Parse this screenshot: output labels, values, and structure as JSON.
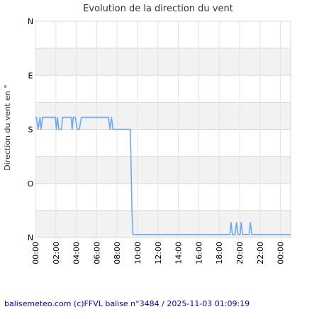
{
  "chart_data": {
    "type": "line",
    "title": "Evolution de la direction du vent",
    "ylabel": "Direction du vent en °",
    "xlabel": "",
    "y_ticks": [
      {
        "label": "N",
        "value": 0
      },
      {
        "label": "E",
        "value": 90
      },
      {
        "label": "S",
        "value": 180
      },
      {
        "label": "O",
        "value": 270
      },
      {
        "label": "N",
        "value": 360
      }
    ],
    "ylim": [
      0,
      360
    ],
    "x_unit": "hours since 00:00",
    "xlim": [
      0,
      25
    ],
    "x_ticks": [
      "00:00",
      "02:00",
      "04:00",
      "06:00",
      "08:00",
      "10:00",
      "12:00",
      "14:00",
      "16:00",
      "18:00",
      "20:00",
      "22:00",
      "00:00"
    ],
    "grid": true,
    "line_color": "#6aaaf0",
    "series": [
      {
        "x": [
          0,
          0.1,
          0.25,
          0.45,
          0.55,
          0.7,
          0.85,
          1.0,
          1.95,
          2.05,
          2.15,
          2.3,
          2.45,
          2.55,
          2.65,
          2.75,
          3.5,
          3.6,
          3.7,
          3.9,
          4.1,
          4.3,
          4.5,
          4.6,
          4.7,
          6.0,
          7.15,
          7.3,
          7.45,
          7.6,
          7.75,
          9.3,
          9.45,
          9.55,
          9.7,
          19.05,
          19.15,
          19.3,
          19.55,
          19.7,
          19.85,
          20.05,
          20.15,
          20.3,
          20.95,
          21.05,
          21.2,
          25.0
        ],
        "y": [
          160,
          160,
          180,
          160,
          180,
          160,
          160,
          160,
          160,
          180,
          160,
          180,
          180,
          180,
          160,
          160,
          160,
          180,
          160,
          160,
          180,
          180,
          160,
          160,
          160,
          160,
          160,
          180,
          160,
          180,
          180,
          180,
          315,
          355,
          355,
          355,
          335,
          355,
          355,
          335,
          355,
          355,
          335,
          355,
          355,
          335,
          355,
          355
        ]
      }
    ]
  },
  "footer": {
    "text": "balisemeteo.com (c)FFVL balise n°3484 / 2025-11-03 01:09:19"
  }
}
